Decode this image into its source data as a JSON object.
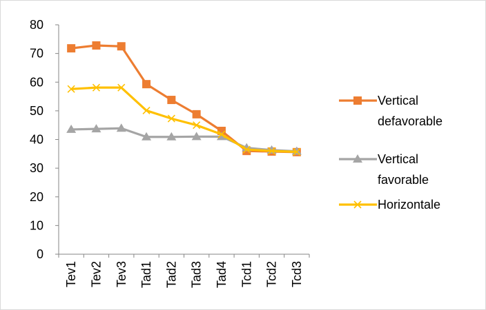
{
  "chart_data": {
    "type": "line",
    "categories": [
      "Tev1",
      "Tev2",
      "Tev3",
      "Tad1",
      "Tad2",
      "Tad3",
      "Tad4",
      "Tcd1",
      "Tcd2",
      "Tcd3"
    ],
    "series": [
      {
        "name": "Vertical defavorable",
        "color": "#ed7d31",
        "marker": "square",
        "values": [
          71.8,
          72.8,
          72.5,
          59.3,
          53.8,
          48.8,
          43,
          36,
          35.8,
          35.6
        ]
      },
      {
        "name": "Vertical favorable",
        "color": "#a5a5a5",
        "marker": "triangle",
        "values": [
          43.5,
          43.7,
          43.9,
          40.9,
          40.9,
          41,
          41,
          37.1,
          36.3,
          35.9
        ]
      },
      {
        "name": "Horizontale",
        "color": "#ffc000",
        "marker": "x",
        "values": [
          57.6,
          58.1,
          58.1,
          50.1,
          47.3,
          45,
          41.8,
          36.5,
          36,
          35.7
        ]
      }
    ],
    "ylim": [
      0,
      80
    ],
    "yticks": [
      0,
      10,
      20,
      30,
      40,
      50,
      60,
      70,
      80
    ],
    "grid": false,
    "legend": "right"
  }
}
